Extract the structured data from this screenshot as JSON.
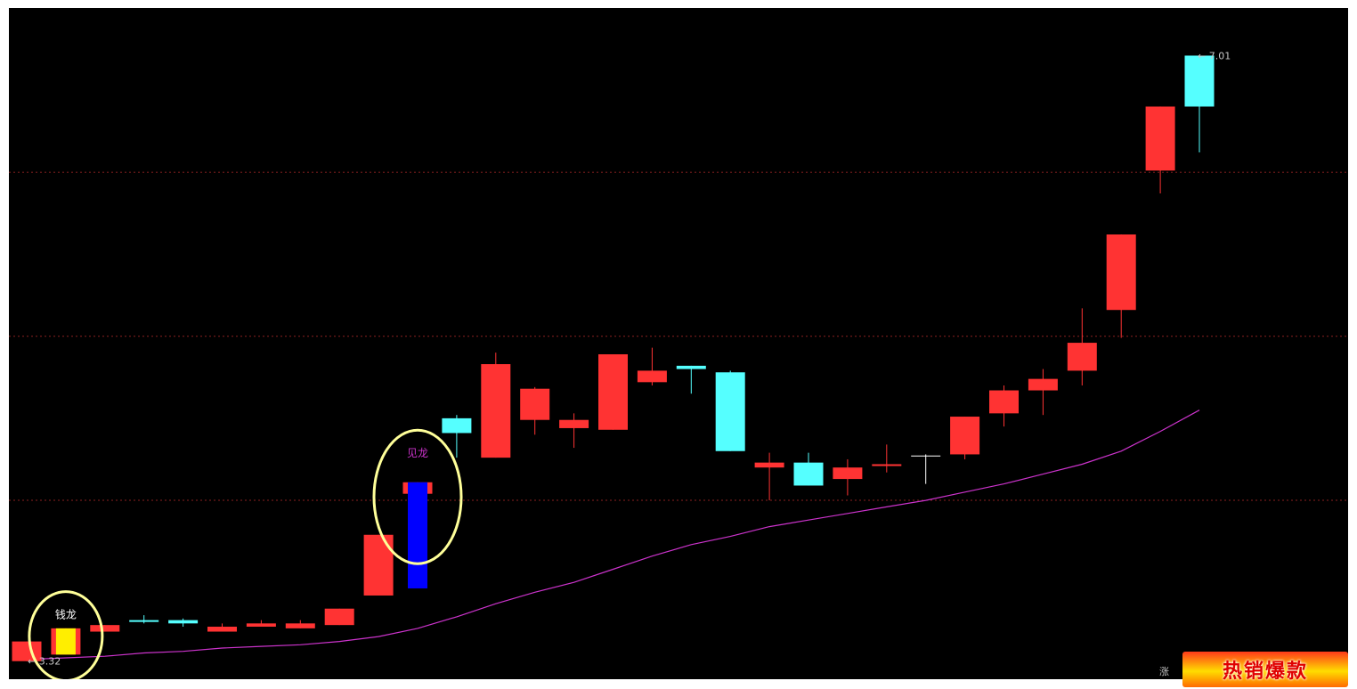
{
  "chart_data": {
    "type": "candlestick",
    "high_label": "7.01",
    "low_label": "3.32",
    "signals": [
      {
        "label": "钱龙",
        "candle_index": 1,
        "color": "#ffffff"
      },
      {
        "label": "见龙",
        "candle_index": 10,
        "color": "#cc33cc"
      }
    ],
    "candles": [
      {
        "o": 3.32,
        "c": 3.44,
        "h": 3.44,
        "l": 3.32
      },
      {
        "o": 3.36,
        "c": 3.52,
        "h": 3.52,
        "l": 3.36,
        "highlight": "#ffee00"
      },
      {
        "o": 3.5,
        "c": 3.54,
        "h": 3.54,
        "l": 3.5
      },
      {
        "o": 3.57,
        "c": 3.56,
        "h": 3.6,
        "l": 3.55
      },
      {
        "o": 3.57,
        "c": 3.55,
        "h": 3.58,
        "l": 3.53
      },
      {
        "o": 3.5,
        "c": 3.53,
        "h": 3.55,
        "l": 3.5
      },
      {
        "o": 3.53,
        "c": 3.55,
        "h": 3.57,
        "l": 3.53
      },
      {
        "o": 3.52,
        "c": 3.55,
        "h": 3.57,
        "l": 3.52
      },
      {
        "o": 3.54,
        "c": 3.64,
        "h": 3.64,
        "l": 3.54
      },
      {
        "o": 3.72,
        "c": 4.09,
        "h": 4.09,
        "l": 3.72
      },
      {
        "o": 4.34,
        "c": 4.41,
        "h": 4.41,
        "l": 4.34,
        "highlight": "#0000ff"
      },
      {
        "o": 4.8,
        "c": 4.71,
        "h": 4.82,
        "l": 4.56
      },
      {
        "o": 4.56,
        "c": 5.13,
        "h": 5.2,
        "l": 4.56
      },
      {
        "o": 4.79,
        "c": 4.98,
        "h": 4.99,
        "l": 4.7
      },
      {
        "o": 4.74,
        "c": 4.79,
        "h": 4.83,
        "l": 4.62
      },
      {
        "o": 4.73,
        "c": 5.19,
        "h": 5.19,
        "l": 4.73
      },
      {
        "o": 5.02,
        "c": 5.09,
        "h": 5.23,
        "l": 5.0
      },
      {
        "o": 5.12,
        "c": 5.1,
        "h": 5.12,
        "l": 4.95
      },
      {
        "o": 5.08,
        "c": 4.6,
        "h": 5.09,
        "l": 4.6
      },
      {
        "o": 4.5,
        "c": 4.53,
        "h": 4.59,
        "l": 4.3
      },
      {
        "o": 4.53,
        "c": 4.39,
        "h": 4.59,
        "l": 4.39
      },
      {
        "o": 4.43,
        "c": 4.5,
        "h": 4.55,
        "l": 4.33
      },
      {
        "o": 4.51,
        "c": 4.52,
        "h": 4.64,
        "l": 4.47
      },
      {
        "o": 4.57,
        "c": 4.57,
        "h": 4.58,
        "l": 4.4
      },
      {
        "o": 4.58,
        "c": 4.81,
        "h": 4.81,
        "l": 4.55
      },
      {
        "o": 4.83,
        "c": 4.97,
        "h": 5.0,
        "l": 4.75
      },
      {
        "o": 4.97,
        "c": 5.04,
        "h": 5.1,
        "l": 4.82
      },
      {
        "o": 5.09,
        "c": 5.26,
        "h": 5.47,
        "l": 5.0
      },
      {
        "o": 5.46,
        "c": 5.92,
        "h": 5.92,
        "l": 5.29
      },
      {
        "o": 6.31,
        "c": 6.7,
        "h": 6.7,
        "l": 6.17
      },
      {
        "o": 7.01,
        "c": 6.7,
        "h": 7.01,
        "l": 6.42
      }
    ],
    "ma_line": [
      3.33,
      3.34,
      3.35,
      3.37,
      3.38,
      3.4,
      3.41,
      3.42,
      3.44,
      3.47,
      3.52,
      3.59,
      3.67,
      3.74,
      3.8,
      3.88,
      3.96,
      4.03,
      4.08,
      4.14,
      4.18,
      4.22,
      4.26,
      4.3,
      4.35,
      4.4,
      4.46,
      4.52,
      4.6,
      4.72,
      4.85
    ],
    "ylim": [
      3.21,
      7.3
    ],
    "gridlines": [
      6.3,
      5.3,
      4.3
    ],
    "colors": {
      "up": "#ff3333",
      "down": "#55ffff",
      "ma": "#cc33cc",
      "signal_ring": "#ffff99"
    }
  },
  "badge": {
    "text": "热销爆款"
  },
  "corner_label": "涨"
}
